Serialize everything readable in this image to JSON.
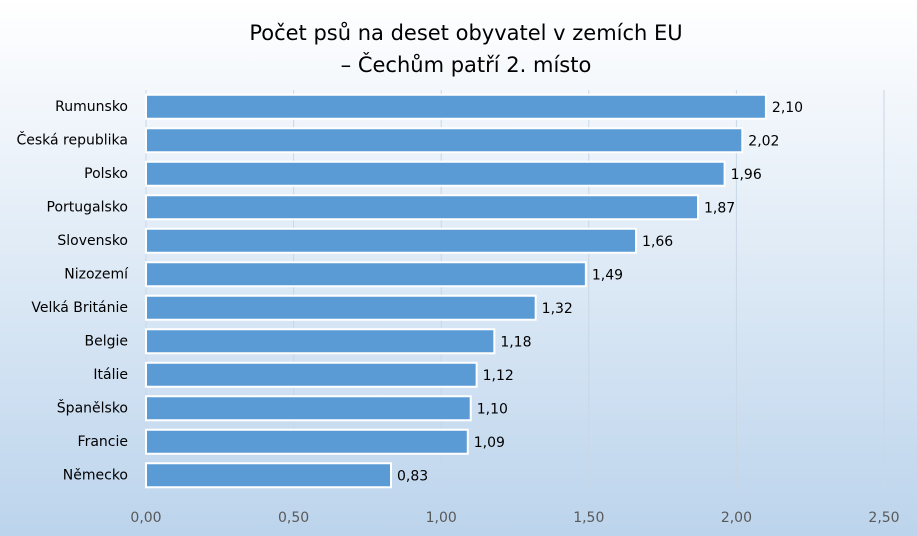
{
  "chart_data": {
    "type": "bar",
    "orientation": "horizontal",
    "title": [
      "Počet psů na deset obyvatel v zemích EU",
      "– Čechům patří 2. místo"
    ],
    "categories": [
      "Rumunsko",
      "Česká republika",
      "Polsko",
      "Portugalsko",
      "Slovensko",
      "Nizozemí",
      "Velká Británie",
      "Belgie",
      "Itálie",
      "Španělsko",
      "Francie",
      "Německo"
    ],
    "values": [
      2.1,
      2.02,
      1.96,
      1.87,
      1.66,
      1.49,
      1.32,
      1.18,
      1.12,
      1.1,
      1.09,
      0.83
    ],
    "value_labels": [
      "2,10",
      "2,02",
      "1,96",
      "1,87",
      "1,66",
      "1,49",
      "1,32",
      "1,18",
      "1,12",
      "1,10",
      "1,09",
      "0,83"
    ],
    "color": "#5b9bd5",
    "xlim": [
      0,
      2.5
    ],
    "xticks": [
      {
        "value": 0,
        "label": "0,00"
      },
      {
        "value": 0.5,
        "label": "0,50"
      },
      {
        "value": 1,
        "label": "1,00"
      },
      {
        "value": 1.5,
        "label": "1,50"
      },
      {
        "value": 2,
        "label": "2,00"
      },
      {
        "value": 2.5,
        "label": "2,50"
      }
    ],
    "grid": true
  }
}
